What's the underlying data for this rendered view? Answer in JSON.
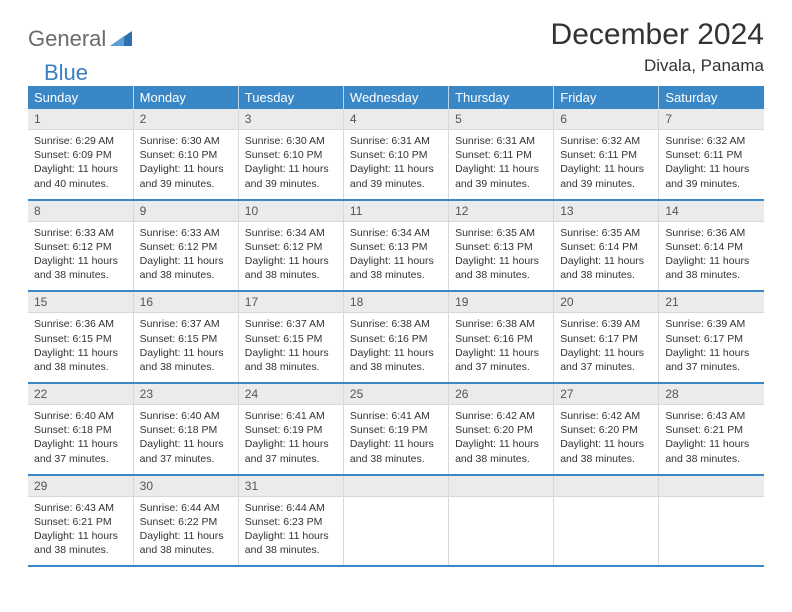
{
  "brand": {
    "part1": "General",
    "part2": "Blue"
  },
  "title": "December 2024",
  "location": "Divala, Panama",
  "colors": {
    "header_bg": "#3a87c7",
    "header_text": "#ffffff",
    "daynum_bg": "#ebebeb",
    "row_border": "#3a87c7",
    "logo_gray": "#6b6b6b",
    "logo_blue": "#3a7fc4"
  },
  "weekdays": [
    "Sunday",
    "Monday",
    "Tuesday",
    "Wednesday",
    "Thursday",
    "Friday",
    "Saturday"
  ],
  "weeks": [
    [
      {
        "n": "1",
        "sr": "6:29 AM",
        "ss": "6:09 PM",
        "dl": "11 hours and 40 minutes."
      },
      {
        "n": "2",
        "sr": "6:30 AM",
        "ss": "6:10 PM",
        "dl": "11 hours and 39 minutes."
      },
      {
        "n": "3",
        "sr": "6:30 AM",
        "ss": "6:10 PM",
        "dl": "11 hours and 39 minutes."
      },
      {
        "n": "4",
        "sr": "6:31 AM",
        "ss": "6:10 PM",
        "dl": "11 hours and 39 minutes."
      },
      {
        "n": "5",
        "sr": "6:31 AM",
        "ss": "6:11 PM",
        "dl": "11 hours and 39 minutes."
      },
      {
        "n": "6",
        "sr": "6:32 AM",
        "ss": "6:11 PM",
        "dl": "11 hours and 39 minutes."
      },
      {
        "n": "7",
        "sr": "6:32 AM",
        "ss": "6:11 PM",
        "dl": "11 hours and 39 minutes."
      }
    ],
    [
      {
        "n": "8",
        "sr": "6:33 AM",
        "ss": "6:12 PM",
        "dl": "11 hours and 38 minutes."
      },
      {
        "n": "9",
        "sr": "6:33 AM",
        "ss": "6:12 PM",
        "dl": "11 hours and 38 minutes."
      },
      {
        "n": "10",
        "sr": "6:34 AM",
        "ss": "6:12 PM",
        "dl": "11 hours and 38 minutes."
      },
      {
        "n": "11",
        "sr": "6:34 AM",
        "ss": "6:13 PM",
        "dl": "11 hours and 38 minutes."
      },
      {
        "n": "12",
        "sr": "6:35 AM",
        "ss": "6:13 PM",
        "dl": "11 hours and 38 minutes."
      },
      {
        "n": "13",
        "sr": "6:35 AM",
        "ss": "6:14 PM",
        "dl": "11 hours and 38 minutes."
      },
      {
        "n": "14",
        "sr": "6:36 AM",
        "ss": "6:14 PM",
        "dl": "11 hours and 38 minutes."
      }
    ],
    [
      {
        "n": "15",
        "sr": "6:36 AM",
        "ss": "6:15 PM",
        "dl": "11 hours and 38 minutes."
      },
      {
        "n": "16",
        "sr": "6:37 AM",
        "ss": "6:15 PM",
        "dl": "11 hours and 38 minutes."
      },
      {
        "n": "17",
        "sr": "6:37 AM",
        "ss": "6:15 PM",
        "dl": "11 hours and 38 minutes."
      },
      {
        "n": "18",
        "sr": "6:38 AM",
        "ss": "6:16 PM",
        "dl": "11 hours and 38 minutes."
      },
      {
        "n": "19",
        "sr": "6:38 AM",
        "ss": "6:16 PM",
        "dl": "11 hours and 37 minutes."
      },
      {
        "n": "20",
        "sr": "6:39 AM",
        "ss": "6:17 PM",
        "dl": "11 hours and 37 minutes."
      },
      {
        "n": "21",
        "sr": "6:39 AM",
        "ss": "6:17 PM",
        "dl": "11 hours and 37 minutes."
      }
    ],
    [
      {
        "n": "22",
        "sr": "6:40 AM",
        "ss": "6:18 PM",
        "dl": "11 hours and 37 minutes."
      },
      {
        "n": "23",
        "sr": "6:40 AM",
        "ss": "6:18 PM",
        "dl": "11 hours and 37 minutes."
      },
      {
        "n": "24",
        "sr": "6:41 AM",
        "ss": "6:19 PM",
        "dl": "11 hours and 37 minutes."
      },
      {
        "n": "25",
        "sr": "6:41 AM",
        "ss": "6:19 PM",
        "dl": "11 hours and 38 minutes."
      },
      {
        "n": "26",
        "sr": "6:42 AM",
        "ss": "6:20 PM",
        "dl": "11 hours and 38 minutes."
      },
      {
        "n": "27",
        "sr": "6:42 AM",
        "ss": "6:20 PM",
        "dl": "11 hours and 38 minutes."
      },
      {
        "n": "28",
        "sr": "6:43 AM",
        "ss": "6:21 PM",
        "dl": "11 hours and 38 minutes."
      }
    ],
    [
      {
        "n": "29",
        "sr": "6:43 AM",
        "ss": "6:21 PM",
        "dl": "11 hours and 38 minutes."
      },
      {
        "n": "30",
        "sr": "6:44 AM",
        "ss": "6:22 PM",
        "dl": "11 hours and 38 minutes."
      },
      {
        "n": "31",
        "sr": "6:44 AM",
        "ss": "6:23 PM",
        "dl": "11 hours and 38 minutes."
      },
      null,
      null,
      null,
      null
    ]
  ],
  "labels": {
    "sunrise": "Sunrise:",
    "sunset": "Sunset:",
    "daylight": "Daylight:"
  }
}
